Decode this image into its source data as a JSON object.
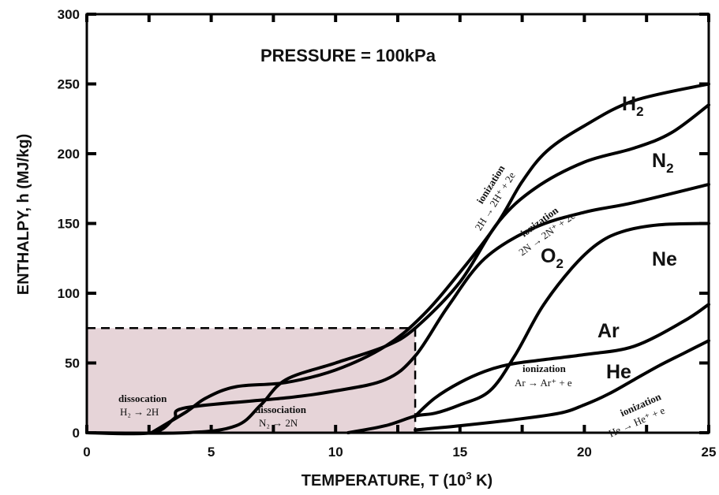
{
  "chart_data": {
    "type": "line",
    "title": "PRESSURE = 100kPa",
    "xlabel": "TEMPERATURE, T (10³ K)",
    "xlabel_parts": {
      "main": "TEMPERATURE, T (10",
      "sup": "3",
      "tail": " K)"
    },
    "ylabel": "ENTHALPY,  h (MJ/kg)",
    "xlim": [
      0,
      25
    ],
    "ylim": [
      0,
      300
    ],
    "xticks": [
      0,
      5,
      10,
      15,
      20,
      25
    ],
    "yticks": [
      0,
      50,
      100,
      150,
      200,
      250,
      300
    ],
    "grid": false,
    "legend": "none",
    "shaded_region": {
      "x": [
        0,
        13.2
      ],
      "y": [
        0,
        75
      ],
      "color": "#e6d4d8"
    },
    "series": [
      {
        "name": "H₂",
        "label_main": "H",
        "label_sub": "2",
        "x": [
          2.6,
          4,
          4.8,
          6,
          8,
          10,
          12,
          13.5,
          15,
          16.5,
          17.5,
          18.5,
          20,
          22,
          25
        ],
        "y": [
          0,
          15,
          25,
          33,
          36,
          45,
          62,
          84,
          115,
          150,
          180,
          202,
          220,
          238,
          250
        ]
      },
      {
        "name": "N₂",
        "label_main": "N",
        "label_sub": "2",
        "x": [
          0,
          4,
          6,
          7,
          8,
          10,
          12,
          13.2,
          15,
          16.5,
          18,
          20,
          22,
          23.5,
          25
        ],
        "y": [
          0,
          0,
          5,
          20,
          38,
          50,
          62,
          75,
          108,
          150,
          175,
          194,
          204,
          215,
          235
        ]
      },
      {
        "name": "O₂",
        "label_main": "O",
        "label_sub": "2",
        "x": [
          0,
          2.6,
          3.5,
          4,
          8,
          10,
          12,
          13.2,
          14.5,
          16,
          18,
          20,
          22,
          25
        ],
        "y": [
          0,
          0,
          10,
          18,
          25,
          30,
          38,
          55,
          90,
          125,
          147,
          158,
          165,
          178
        ]
      },
      {
        "name": "Ne",
        "x": [
          10.5,
          12,
          13.2,
          14,
          15,
          16.2,
          17.2,
          18.3,
          19.5,
          20.5,
          21.5,
          23,
          25
        ],
        "y": [
          0,
          5,
          12,
          14,
          20,
          30,
          55,
          90,
          118,
          135,
          144,
          149,
          150
        ]
      },
      {
        "name": "Ar",
        "x": [
          13.2,
          14,
          15,
          16,
          17,
          18.2,
          20,
          22,
          24,
          25
        ],
        "y": [
          12,
          25,
          36,
          44,
          49,
          52,
          56,
          62,
          80,
          92
        ]
      },
      {
        "name": "He",
        "x": [
          13.2,
          15,
          17,
          19,
          20,
          21,
          22,
          23,
          24,
          25
        ],
        "y": [
          2,
          5,
          9,
          14,
          20,
          28,
          38,
          48,
          57,
          66
        ]
      }
    ],
    "annotations": [
      {
        "lines": [
          "dissocation",
          "H₂ → 2H"
        ]
      },
      {
        "lines": [
          "dissociation",
          "N₂ → 2N"
        ]
      },
      {
        "lines": [
          "ionization",
          "2H → 2H⁺ + 2e"
        ]
      },
      {
        "lines": [
          "ionization",
          "2N → 2N⁺ + 2e"
        ]
      },
      {
        "lines": [
          "ionization",
          "Ar → Ar⁺ + e"
        ]
      },
      {
        "lines": [
          "ionization",
          "He → He⁺ + e"
        ]
      }
    ]
  }
}
